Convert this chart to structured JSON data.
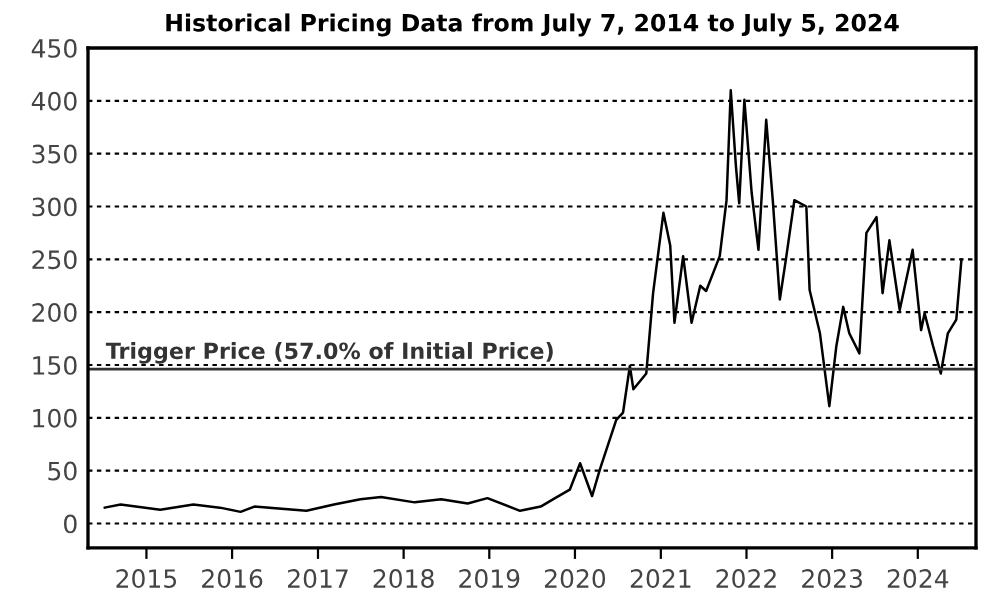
{
  "chart_data": {
    "type": "line",
    "title": "Historical Pricing Data from July 7, 2014 to July 5, 2024",
    "x": [
      "2014-07-07",
      "2014-09-13",
      "2015-03-01",
      "2015-07-20",
      "2015-11-10",
      "2016-02-06",
      "2016-04-05",
      "2016-11-13",
      "2017-03-10",
      "2017-07-01",
      "2017-09-27",
      "2018-02-17",
      "2018-06-10",
      "2018-10-01",
      "2018-12-24",
      "2019-05-12",
      "2019-08-08",
      "2019-10-01",
      "2019-12-10",
      "2020-01-23",
      "2020-03-14",
      "2020-04-16",
      "2020-06-25",
      "2020-07-24",
      "2020-08-22",
      "2020-09-06",
      "2020-10-31",
      "2020-11-29",
      "2021-01-12",
      "2021-02-10",
      "2021-02-28",
      "2021-04-06",
      "2021-05-12",
      "2021-06-18",
      "2021-07-13",
      "2021-09-09",
      "2021-10-08",
      "2021-10-26",
      "2021-11-17",
      "2021-12-01",
      "2021-12-23",
      "2022-01-23",
      "2022-02-21",
      "2022-03-26",
      "2022-04-23",
      "2022-05-23",
      "2022-06-18",
      "2022-07-24",
      "2022-09-13",
      "2022-09-27",
      "2022-11-10",
      "2022-12-20",
      "2023-01-19",
      "2023-02-17",
      "2023-03-15",
      "2023-04-27",
      "2023-05-27",
      "2023-07-09",
      "2023-08-04",
      "2023-09-02",
      "2023-10-16",
      "2023-12-10",
      "2024-01-15",
      "2024-01-30",
      "2024-03-06",
      "2024-04-08",
      "2024-05-08",
      "2024-06-13",
      "2024-07-05"
    ],
    "series": [
      {
        "color": "#000000",
        "values": [
          15,
          18,
          13,
          18,
          15,
          11,
          16,
          12,
          18,
          23,
          25,
          20,
          23,
          19,
          24,
          12,
          16,
          23,
          32,
          57,
          26,
          51,
          98,
          105,
          149,
          127,
          142,
          218,
          294,
          263,
          190,
          253,
          190,
          225,
          220,
          253,
          306,
          410,
          338,
          303,
          401,
          313,
          259,
          382,
          306,
          212,
          250,
          306,
          300,
          221,
          180,
          111,
          168,
          205,
          180,
          161,
          275,
          290,
          218,
          268,
          202,
          259,
          183,
          199,
          168,
          142,
          180,
          193,
          250
        ]
      }
    ],
    "xlim": [
      "2014-04-27",
      "2024-09-05"
    ],
    "xticks": [
      {
        "value": "2015-01-01",
        "label": "2015"
      },
      {
        "value": "2016-01-01",
        "label": "2016"
      },
      {
        "value": "2017-01-01",
        "label": "2017"
      },
      {
        "value": "2018-01-01",
        "label": "2018"
      },
      {
        "value": "2019-01-01",
        "label": "2019"
      },
      {
        "value": "2020-01-01",
        "label": "2020"
      },
      {
        "value": "2021-01-01",
        "label": "2021"
      },
      {
        "value": "2022-01-01",
        "label": "2022"
      },
      {
        "value": "2023-01-01",
        "label": "2023"
      },
      {
        "value": "2024-01-01",
        "label": "2024"
      }
    ],
    "ylim": [
      -23,
      450
    ],
    "yticks": [
      0,
      50,
      100,
      150,
      200,
      250,
      300,
      350,
      400,
      450
    ],
    "grid": "y",
    "legend": false,
    "marker": "none",
    "line_style": "solid",
    "ref_lines": [
      {
        "axis": "y",
        "value": 146,
        "label": "Trigger Price (57.0% of Initial Price)",
        "color": "#333333",
        "line_style": "solid"
      }
    ]
  }
}
